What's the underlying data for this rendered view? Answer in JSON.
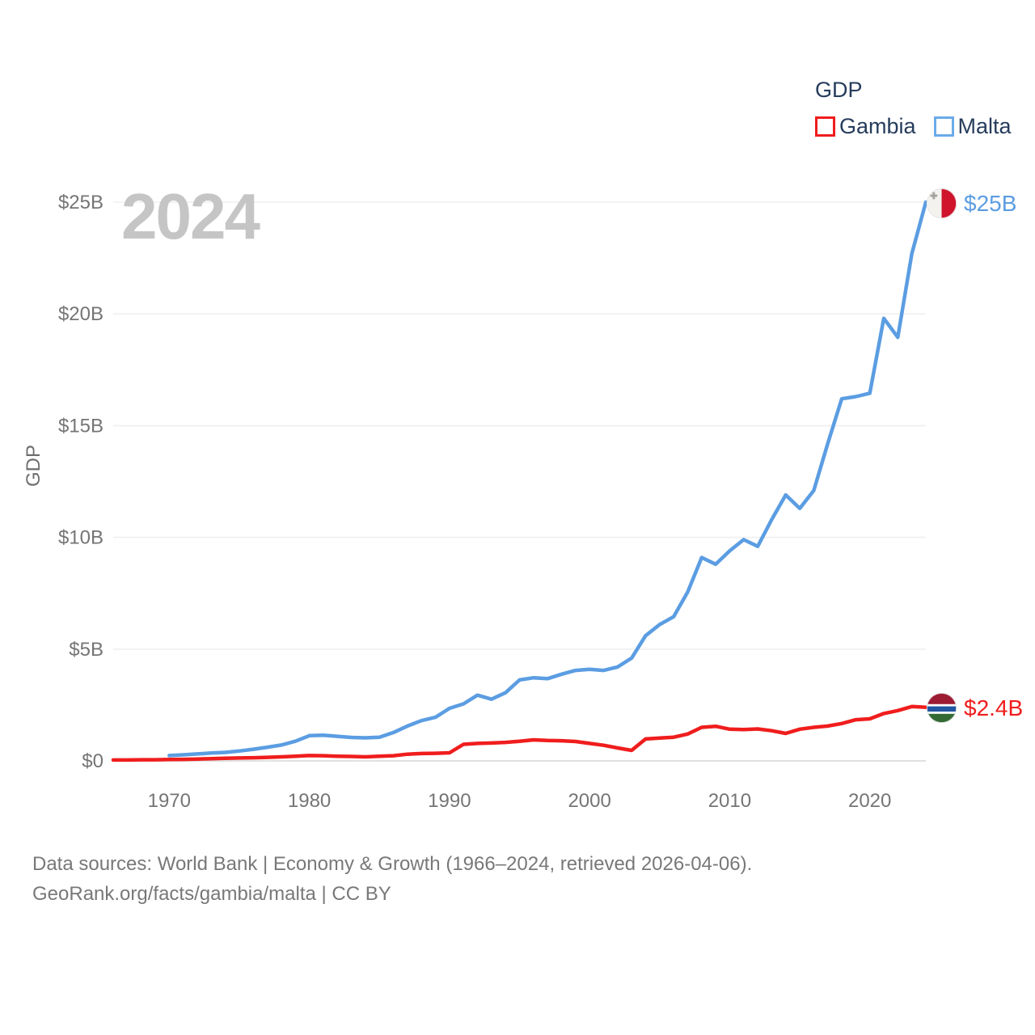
{
  "watermark": "2024",
  "legend": {
    "title": "GDP",
    "items": [
      {
        "label": "Gambia",
        "color": "#f01d1d"
      },
      {
        "label": "Malta",
        "color": "#5b9de2"
      }
    ]
  },
  "flags": {
    "malta": {
      "white": "#f4f2ee",
      "red": "#cf142b",
      "cross": "#a3a3a0"
    },
    "gambia": {
      "red": "#9d1b33",
      "blue": "#2256a3",
      "green": "#336a34",
      "white": "#ffffff"
    }
  },
  "footer": {
    "line1": "Data sources: World Bank | Economy & Growth (1966–2024, retrieved 2026-04-06).",
    "line2": "GeoRank.org/facts/gambia/malta | CC BY"
  },
  "chart_data": {
    "type": "line",
    "title": "GDP",
    "ylabel": "GDP",
    "xlabel": "",
    "x_range": [
      1966,
      2024
    ],
    "ylim": [
      0,
      25
    ],
    "units": "billions of current US$",
    "grid": true,
    "grid_color": "#efefef",
    "zero_line_color": "#e0e0e0",
    "legend_position": "top-right",
    "yticks": [
      {
        "v": 0,
        "label": "$0"
      },
      {
        "v": 5,
        "label": "$5B"
      },
      {
        "v": 10,
        "label": "$10B"
      },
      {
        "v": 15,
        "label": "$15B"
      },
      {
        "v": 20,
        "label": "$20B"
      },
      {
        "v": 25,
        "label": "$25B"
      }
    ],
    "xticks": [
      {
        "v": 1970,
        "label": "1970"
      },
      {
        "v": 1980,
        "label": "1980"
      },
      {
        "v": 1990,
        "label": "1990"
      },
      {
        "v": 2000,
        "label": "2000"
      },
      {
        "v": 2010,
        "label": "2010"
      },
      {
        "v": 2020,
        "label": "2020"
      }
    ],
    "series": [
      {
        "name": "Gambia",
        "color": "#f01d1d",
        "start_year": 1966,
        "end_label": "$2.4B",
        "values": [
          0.04,
          0.04,
          0.05,
          0.05,
          0.06,
          0.07,
          0.08,
          0.1,
          0.12,
          0.13,
          0.14,
          0.16,
          0.18,
          0.21,
          0.24,
          0.23,
          0.21,
          0.2,
          0.18,
          0.21,
          0.23,
          0.3,
          0.33,
          0.34,
          0.36,
          0.74,
          0.78,
          0.8,
          0.83,
          0.88,
          0.94,
          0.91,
          0.9,
          0.87,
          0.78,
          0.7,
          0.58,
          0.47,
          0.98,
          1.02,
          1.06,
          1.2,
          1.5,
          1.55,
          1.42,
          1.4,
          1.43,
          1.35,
          1.23,
          1.42,
          1.5,
          1.56,
          1.67,
          1.84,
          1.88,
          2.12,
          2.25,
          2.43,
          2.4
        ]
      },
      {
        "name": "Malta",
        "color": "#5b9de2",
        "start_year": 1970,
        "end_label": "$25B",
        "values": [
          0.24,
          0.27,
          0.31,
          0.35,
          0.38,
          0.44,
          0.52,
          0.61,
          0.71,
          0.88,
          1.13,
          1.15,
          1.1,
          1.05,
          1.03,
          1.06,
          1.27,
          1.56,
          1.8,
          1.95,
          2.35,
          2.55,
          2.94,
          2.76,
          3.05,
          3.62,
          3.72,
          3.68,
          3.88,
          4.05,
          4.1,
          4.05,
          4.2,
          4.6,
          5.6,
          6.1,
          6.45,
          7.55,
          9.1,
          8.8,
          9.4,
          9.9,
          9.6,
          10.8,
          11.9,
          11.3,
          12.1,
          14.2,
          16.2,
          16.3,
          16.45,
          19.8,
          18.95,
          22.7,
          25.0
        ]
      }
    ]
  }
}
